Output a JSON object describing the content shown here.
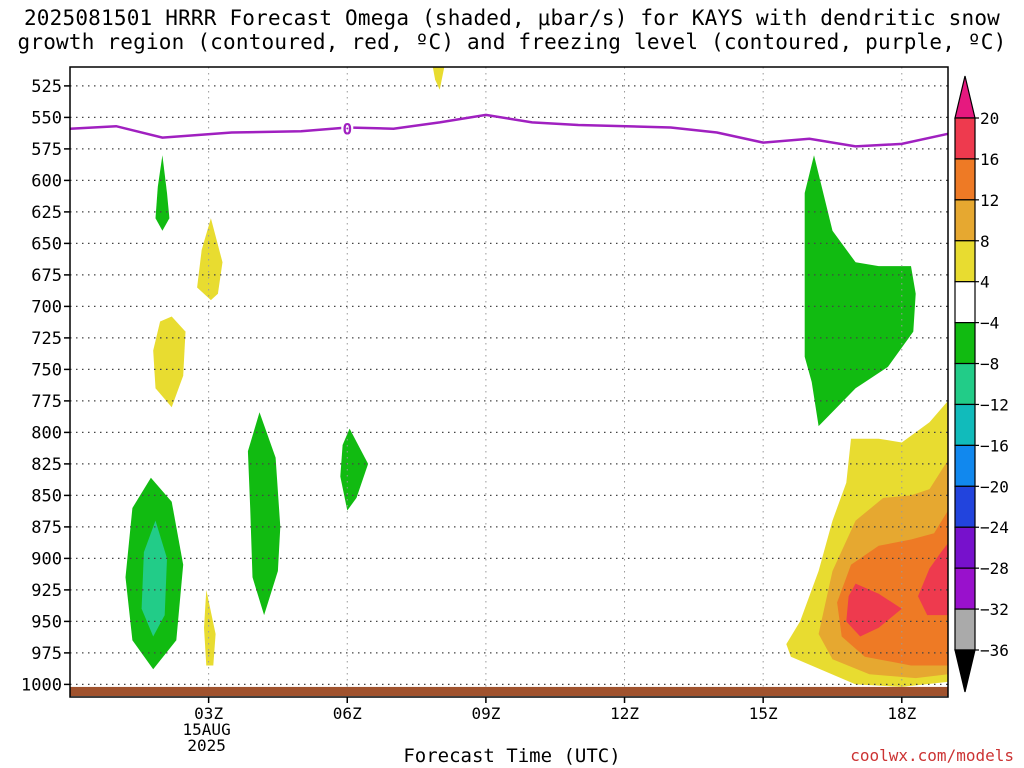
{
  "title_line1": "2025081501 HRRR Forecast Omega (shaded, μbar/s) for KAYS with dendritic snow",
  "title_line2": "growth region (contoured, red, ºC) and freezing level (contoured, purple, ºC)",
  "x_axis_title": "Forecast Time (UTC)",
  "credit": "coolwx.com/models",
  "chart_data": {
    "type": "heatmap",
    "x": {
      "ticks": [
        "03Z",
        "06Z",
        "09Z",
        "12Z",
        "15Z",
        "18Z"
      ],
      "tick_hours": [
        3,
        6,
        9,
        12,
        15,
        18
      ],
      "date_lines": [
        "15AUG",
        "2025"
      ],
      "range_hours": [
        0,
        19
      ]
    },
    "y": {
      "ticks": [
        525,
        550,
        575,
        600,
        625,
        650,
        675,
        700,
        725,
        750,
        775,
        800,
        825,
        850,
        875,
        900,
        925,
        950,
        975,
        1000
      ],
      "range_mb": [
        510,
        1010
      ],
      "reversed": true
    },
    "grid": true,
    "colorbar": {
      "labels": [
        "20",
        "16",
        "12",
        "8",
        "4",
        "−4",
        "−8",
        "−12",
        "−16",
        "−20",
        "−24",
        "−28",
        "−32",
        "−36"
      ],
      "colors": [
        "#ee3a4e",
        "#ee7a25",
        "#e6a830",
        "#e8dc30",
        "#ffffff",
        "#11bb11",
        "#22cc88",
        "#11bbbb",
        "#1188ee",
        "#2244dd",
        "#7711cc",
        "#9911cc",
        "#aaaaaa"
      ],
      "top_arrow_color": "#e6197f",
      "bottom_arrow_color": "#000000"
    },
    "freezing_level": {
      "color": "#a020c0",
      "label": "0",
      "points": [
        [
          0,
          559
        ],
        [
          1,
          557
        ],
        [
          2,
          566
        ],
        [
          3.5,
          562
        ],
        [
          5,
          561
        ],
        [
          6,
          558
        ],
        [
          7,
          559
        ],
        [
          8,
          554
        ],
        [
          9,
          548
        ],
        [
          10,
          554
        ],
        [
          11,
          556
        ],
        [
          13,
          558
        ],
        [
          14,
          562
        ],
        [
          15,
          570
        ],
        [
          16,
          567
        ],
        [
          17,
          573
        ],
        [
          18,
          571
        ],
        [
          19,
          563
        ]
      ],
      "label_at": [
        6,
        559
      ]
    },
    "shaded_regions": [
      {
        "name": "omega-green-2z-upper",
        "color": "#11bb11",
        "points": [
          [
            2.0,
            580
          ],
          [
            2.1,
            610
          ],
          [
            2.15,
            630
          ],
          [
            2.0,
            640
          ],
          [
            1.85,
            630
          ],
          [
            1.9,
            605
          ]
        ]
      },
      {
        "name": "omega-yellow-3z",
        "color": "#e8dc30",
        "points": [
          [
            3.05,
            630
          ],
          [
            3.3,
            665
          ],
          [
            3.2,
            690
          ],
          [
            3.05,
            695
          ],
          [
            2.75,
            685
          ],
          [
            2.85,
            655
          ]
        ]
      },
      {
        "name": "omega-yellow-2z",
        "color": "#e8dc30",
        "points": [
          [
            2.2,
            708
          ],
          [
            2.5,
            720
          ],
          [
            2.45,
            755
          ],
          [
            2.2,
            780
          ],
          [
            1.85,
            765
          ],
          [
            1.8,
            735
          ],
          [
            1.95,
            712
          ]
        ]
      },
      {
        "name": "omega-green-4z",
        "color": "#11bb11",
        "points": [
          [
            4.1,
            784
          ],
          [
            4.45,
            820
          ],
          [
            4.55,
            875
          ],
          [
            4.5,
            910
          ],
          [
            4.2,
            945
          ],
          [
            3.95,
            915
          ],
          [
            3.9,
            860
          ],
          [
            3.85,
            815
          ]
        ]
      },
      {
        "name": "omega-green-6z",
        "color": "#11bb11",
        "points": [
          [
            6.05,
            797
          ],
          [
            6.45,
            825
          ],
          [
            6.2,
            852
          ],
          [
            6.0,
            862
          ],
          [
            5.85,
            835
          ],
          [
            5.9,
            810
          ]
        ]
      },
      {
        "name": "omega-yellow-8z-top",
        "color": "#e8dc30",
        "points": [
          [
            7.85,
            510
          ],
          [
            8.1,
            510
          ],
          [
            8.0,
            528
          ],
          [
            7.9,
            520
          ]
        ]
      },
      {
        "name": "omega-green-2z-low",
        "color": "#11bb11",
        "points": [
          [
            1.75,
            836
          ],
          [
            2.2,
            855
          ],
          [
            2.45,
            905
          ],
          [
            2.3,
            965
          ],
          [
            1.8,
            988
          ],
          [
            1.35,
            965
          ],
          [
            1.2,
            915
          ],
          [
            1.35,
            860
          ]
        ]
      },
      {
        "name": "omega-teal-2z-low",
        "color": "#22cc88",
        "points": [
          [
            1.85,
            870
          ],
          [
            2.1,
            900
          ],
          [
            2.05,
            945
          ],
          [
            1.8,
            962
          ],
          [
            1.55,
            940
          ],
          [
            1.6,
            895
          ]
        ]
      },
      {
        "name": "omega-yellow-3z-low",
        "color": "#e8dc30",
        "points": [
          [
            2.95,
            925
          ],
          [
            3.15,
            960
          ],
          [
            3.1,
            985
          ],
          [
            2.95,
            985
          ],
          [
            2.9,
            955
          ]
        ]
      },
      {
        "name": "omega-green-16z",
        "color": "#11bb11",
        "points": [
          [
            16.1,
            580
          ],
          [
            16.5,
            640
          ],
          [
            17.0,
            665
          ],
          [
            17.5,
            668
          ],
          [
            18.2,
            668
          ],
          [
            18.3,
            690
          ],
          [
            18.25,
            720
          ],
          [
            17.7,
            748
          ],
          [
            17.0,
            765
          ],
          [
            16.6,
            780
          ],
          [
            16.2,
            795
          ],
          [
            16.05,
            760
          ],
          [
            15.9,
            740
          ],
          [
            15.9,
            610
          ]
        ]
      },
      {
        "name": "omega-yellow-lower-right",
        "color": "#e8dc30",
        "points": [
          [
            16.9,
            805
          ],
          [
            17.5,
            805
          ],
          [
            18.0,
            808
          ],
          [
            18.6,
            792
          ],
          [
            19.0,
            775
          ],
          [
            19.0,
            998
          ],
          [
            18.0,
            1002
          ],
          [
            17.0,
            1000
          ],
          [
            15.6,
            978
          ],
          [
            15.5,
            968
          ],
          [
            15.8,
            950
          ],
          [
            16.2,
            910
          ],
          [
            16.5,
            870
          ],
          [
            16.8,
            840
          ]
        ]
      },
      {
        "name": "omega-gold-lower-right",
        "color": "#e6a830",
        "points": [
          [
            18.6,
            845
          ],
          [
            19.0,
            822
          ],
          [
            19.0,
            992
          ],
          [
            18.3,
            995
          ],
          [
            17.3,
            992
          ],
          [
            16.5,
            980
          ],
          [
            16.2,
            960
          ],
          [
            16.5,
            910
          ],
          [
            17.0,
            870
          ],
          [
            17.6,
            852
          ],
          [
            18.2,
            850
          ]
        ]
      },
      {
        "name": "omega-orange-lower-right",
        "color": "#ee7a25",
        "points": [
          [
            18.7,
            880
          ],
          [
            19.0,
            862
          ],
          [
            19.0,
            985
          ],
          [
            18.2,
            985
          ],
          [
            17.2,
            978
          ],
          [
            16.7,
            962
          ],
          [
            16.6,
            935
          ],
          [
            16.9,
            905
          ],
          [
            17.5,
            890
          ],
          [
            18.2,
            885
          ]
        ]
      },
      {
        "name": "omega-red-17z",
        "color": "#ee3a4e",
        "points": [
          [
            17.0,
            920
          ],
          [
            17.5,
            928
          ],
          [
            18.0,
            940
          ],
          [
            17.5,
            955
          ],
          [
            17.1,
            962
          ],
          [
            16.8,
            950
          ],
          [
            16.85,
            930
          ]
        ]
      },
      {
        "name": "omega-red-19z",
        "color": "#ee3a4e",
        "points": [
          [
            19.0,
            888
          ],
          [
            19.0,
            945
          ],
          [
            18.55,
            945
          ],
          [
            18.35,
            930
          ],
          [
            18.6,
            908
          ],
          [
            18.85,
            895
          ]
        ]
      }
    ],
    "surface_band": {
      "color": "#a0522d",
      "pressure_top": 1002,
      "pressure_bottom": 1010
    }
  }
}
